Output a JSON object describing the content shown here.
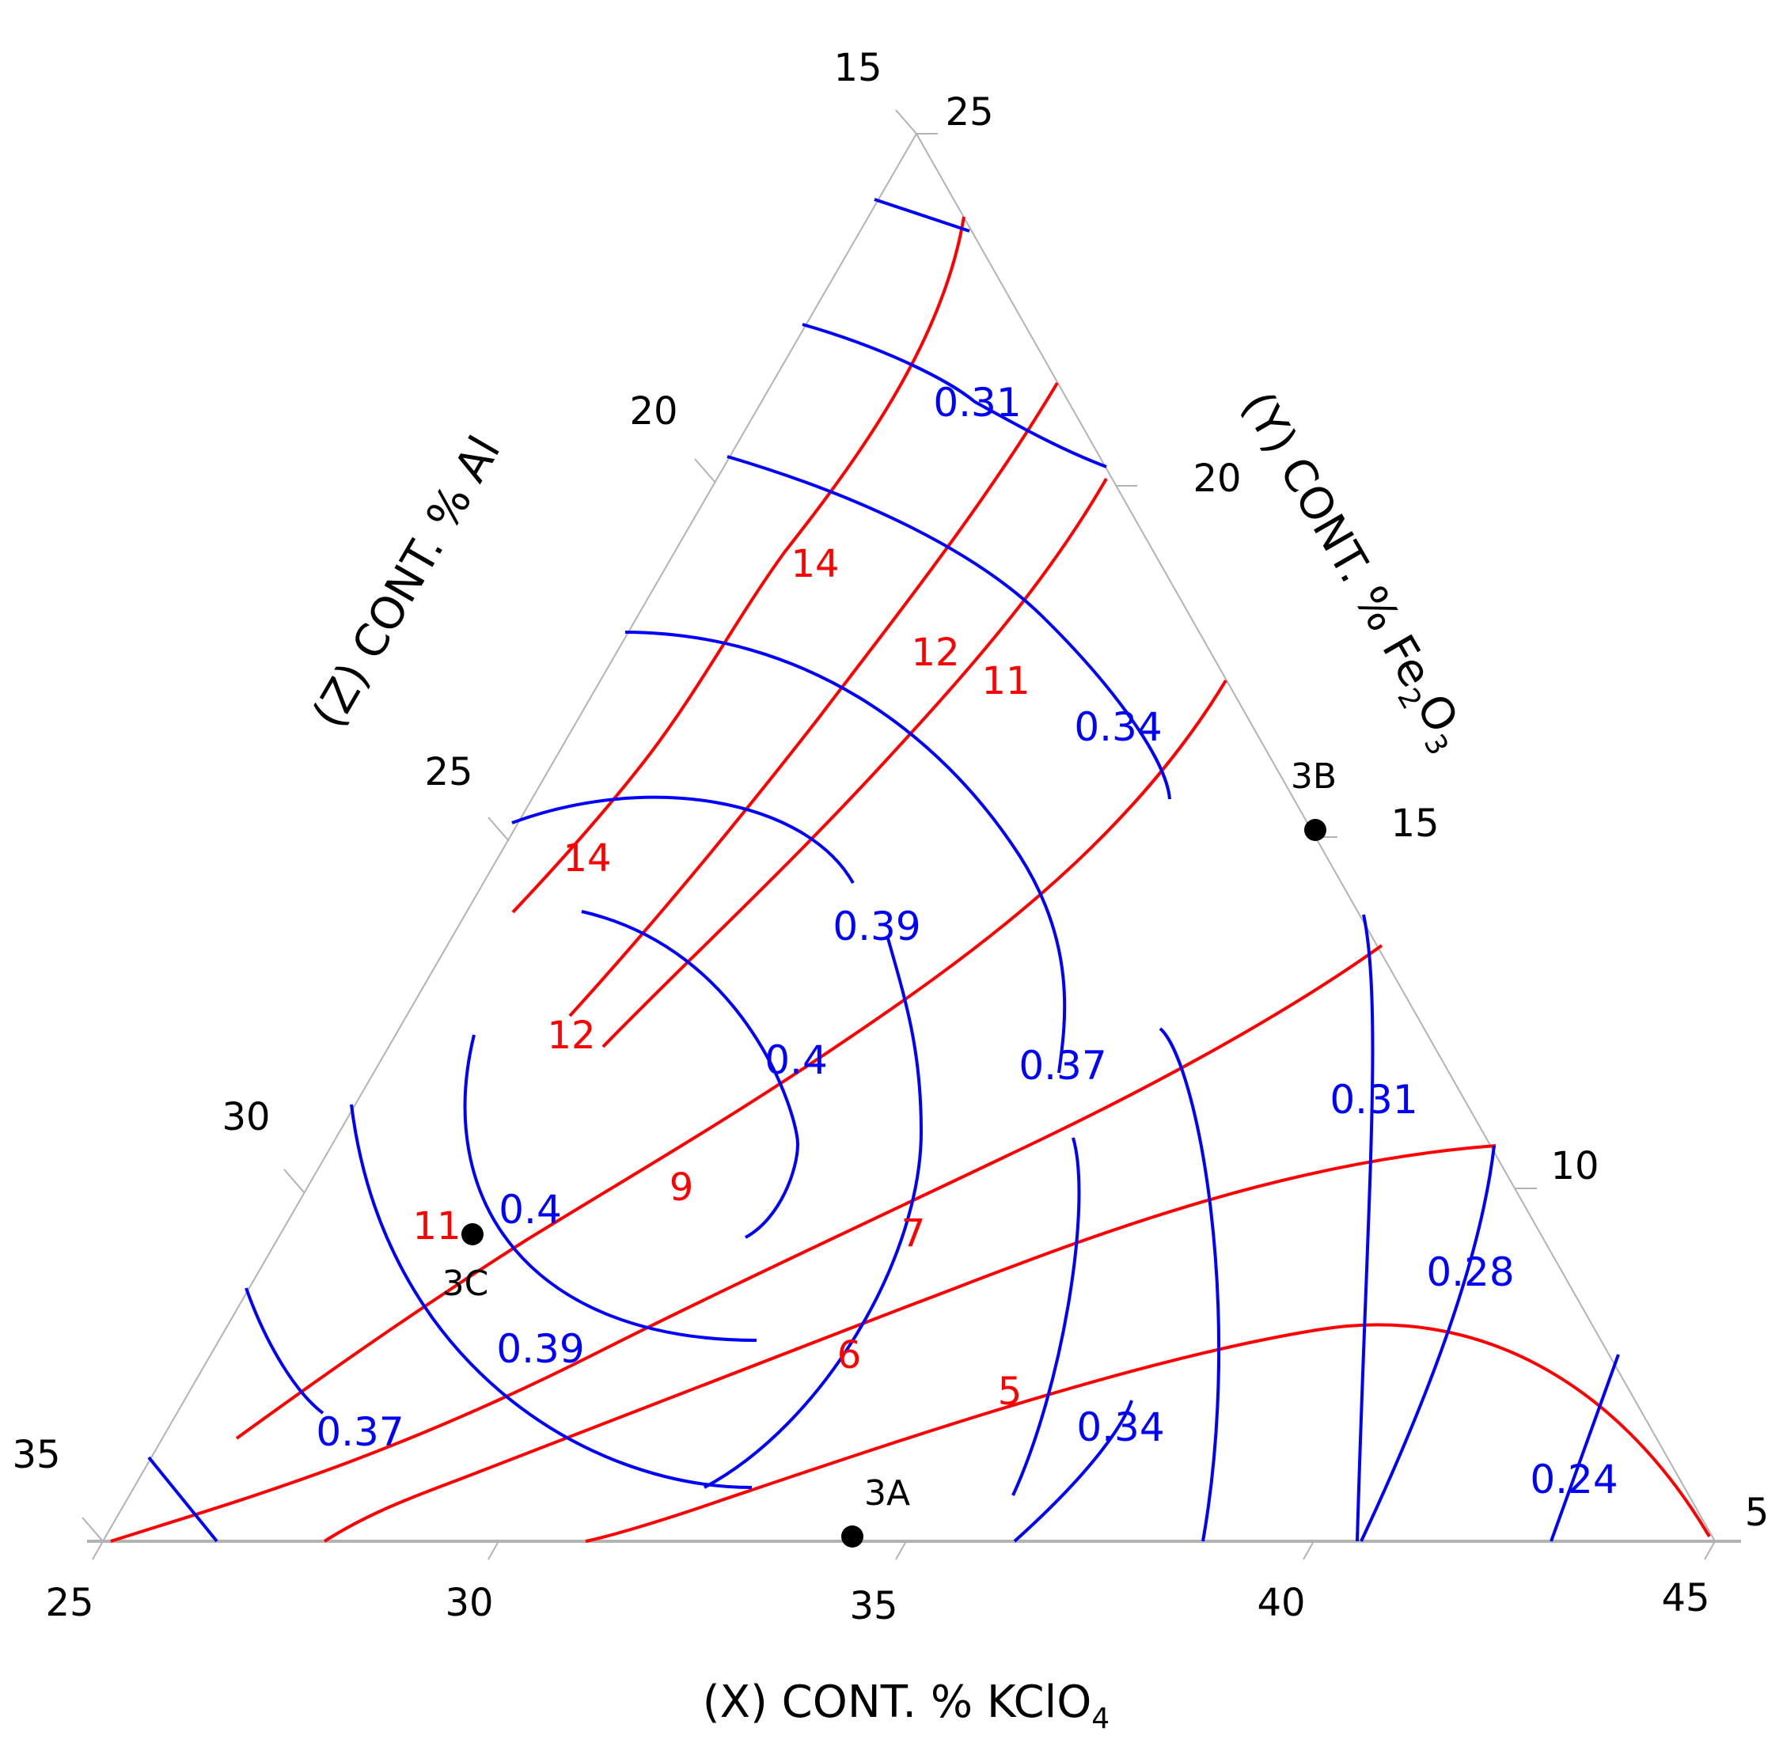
{
  "chart_data": {
    "type": "ternary_contour",
    "axes": {
      "x": {
        "label_pre": "(X) CONT. % KClO",
        "label_sub": "4",
        "ticks": [
          25,
          30,
          35,
          40,
          45
        ]
      },
      "z": {
        "label": "(Z) CONT. % Al",
        "ticks": [
          15,
          20,
          25,
          30,
          35
        ]
      },
      "y": {
        "label_pre": "(Y) CONT. % Fe",
        "label_sub": "2",
        "label_post": "O",
        "label_sub2": "3",
        "ticks": [
          25,
          20,
          15,
          10,
          5
        ]
      }
    },
    "colors": {
      "red_contours": "#ff0000",
      "blue_contours": "#0000ff",
      "grid": "#b3b3b3",
      "text": "#000000"
    },
    "red_contour_levels": [
      "14",
      "12",
      "11",
      "14",
      "12",
      "11",
      "9",
      "7",
      "6",
      "5"
    ],
    "blue_contour_levels": [
      "0.31",
      "0.34",
      "0.39",
      "0.4",
      "0.37",
      "0.31",
      "0.4",
      "0.39",
      "0.37",
      "0.28",
      "0.34",
      "0.24"
    ],
    "points": [
      {
        "label": "3A",
        "x": 35,
        "y": 5
      },
      {
        "label": "3B",
        "x": 25,
        "y": 15
      },
      {
        "label": "3C",
        "x": 29.9,
        "y": 8.5
      }
    ]
  }
}
